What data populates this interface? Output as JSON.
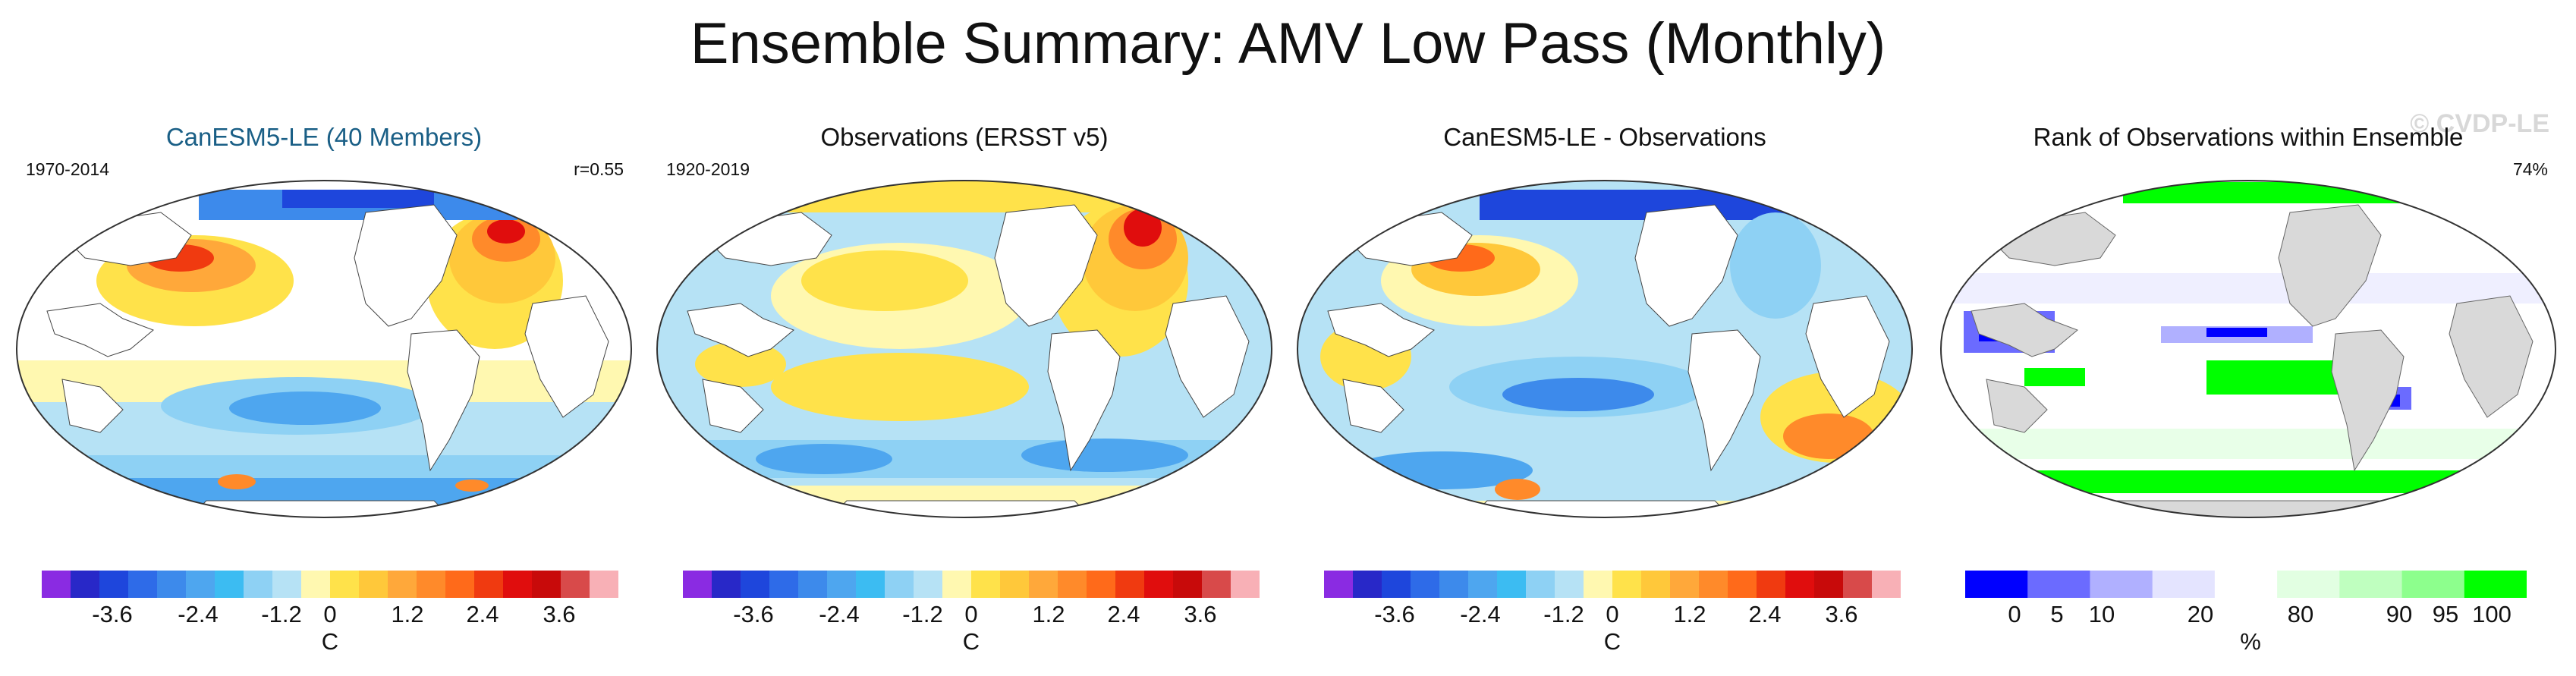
{
  "page": {
    "title": "Ensemble Summary: AMV Low Pass (Monthly)"
  },
  "colors": {
    "diverging": [
      "#8a2be2",
      "#2828c8",
      "#1e46dc",
      "#2e6be8",
      "#3d8aeb",
      "#4ea6ef",
      "#3cbcf2",
      "#8ed1f4",
      "#b6e2f5",
      "#fff8b0",
      "#ffe24a",
      "#ffc83a",
      "#ffa83a",
      "#ff8a2a",
      "#ff6a1a",
      "#f03a10",
      "#e00d0d",
      "#c80a0a",
      "#d84a4a",
      "#f8b0b6"
    ],
    "rank": [
      "#0000ff",
      "#6b6bff",
      "#b0b0ff",
      "#e4e4ff",
      "#ffffff",
      "#e2ffe2",
      "#bfffbf",
      "#8dff8d",
      "#00ff00"
    ]
  },
  "panels": [
    {
      "title": "CanESM5-LE (40 Members)",
      "left_label": "1970-2014",
      "right_label": "r=0.55",
      "colorbar": {
        "ticks": [
          "-3.6",
          "-2.4",
          "-1.2",
          "0",
          "1.2",
          "2.4",
          "3.6"
        ],
        "unit": "C"
      }
    },
    {
      "title": "Observations (ERSST v5)",
      "left_label": "1920-2019",
      "right_label": "",
      "colorbar": {
        "ticks": [
          "-3.6",
          "-2.4",
          "-1.2",
          "0",
          "1.2",
          "2.4",
          "3.6"
        ],
        "unit": "C"
      }
    },
    {
      "title": "CanESM5-LE - Observations",
      "left_label": "",
      "right_label": "",
      "colorbar": {
        "ticks": [
          "-3.6",
          "-2.4",
          "-1.2",
          "0",
          "1.2",
          "2.4",
          "3.6"
        ],
        "unit": "C"
      }
    },
    {
      "title": "Rank of Observations within Ensemble",
      "left_label": "",
      "right_label": "74%",
      "watermark": "© CVDP-LE",
      "colorbar": {
        "ticks": [
          "0",
          "5",
          "10",
          "20",
          "80",
          "90",
          "95",
          "100"
        ],
        "unit": "%"
      }
    }
  ]
}
